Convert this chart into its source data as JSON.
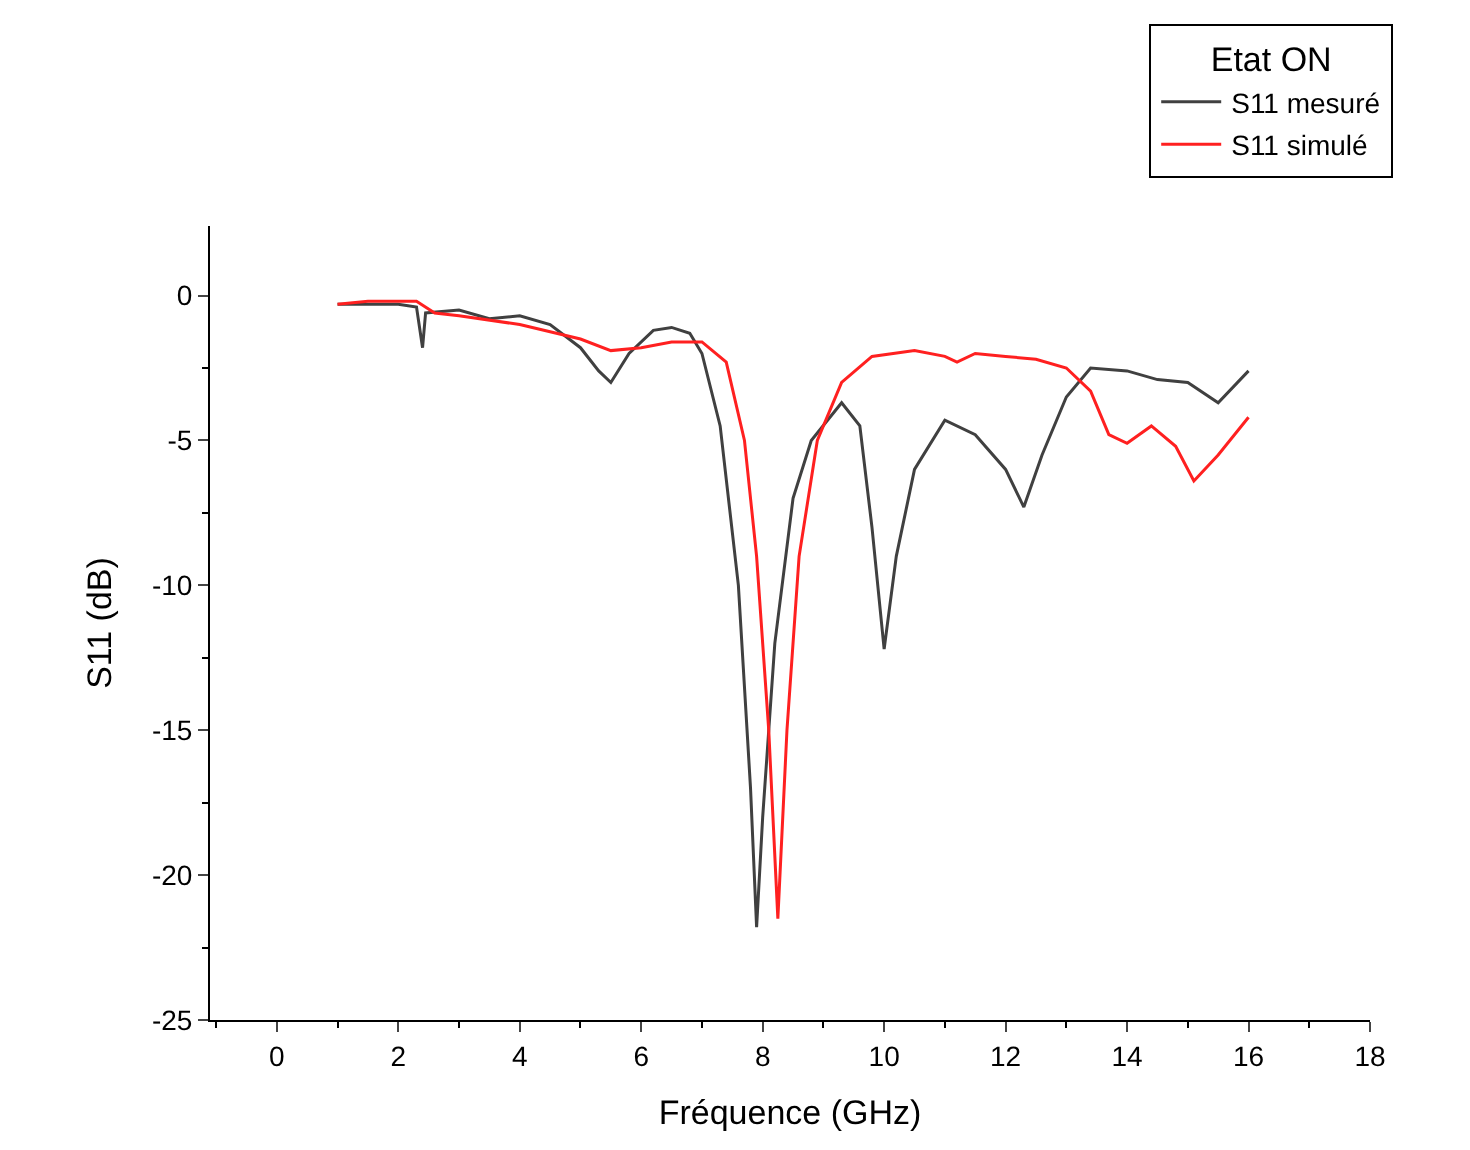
{
  "chart_data": {
    "type": "line",
    "xlabel": "Fréquence (GHz)",
    "ylabel": "S11 (dB)",
    "legend_title": "Etat ON",
    "xlim": [
      -1.1,
      18
    ],
    "xticks": [
      0,
      2,
      4,
      6,
      8,
      10,
      12,
      14,
      16,
      18
    ],
    "ylim": [
      -25,
      2.4
    ],
    "yticks": [
      -25,
      -20,
      -15,
      -10,
      -5,
      0
    ],
    "legend": "top right",
    "series": [
      {
        "name": "S11 mesuré",
        "color": "#404040",
        "x": [
          1.0,
          1.5,
          2.0,
          2.3,
          2.4,
          2.45,
          3.0,
          3.5,
          4.0,
          4.5,
          5.0,
          5.3,
          5.5,
          5.8,
          6.2,
          6.5,
          6.8,
          7.0,
          7.3,
          7.6,
          7.8,
          7.9,
          8.0,
          8.2,
          8.5,
          8.8,
          9.3,
          9.6,
          9.8,
          10.0,
          10.2,
          10.5,
          11.0,
          11.5,
          12.0,
          12.3,
          12.6,
          13.0,
          13.4,
          14.0,
          14.5,
          15.0,
          15.5,
          16.0
        ],
        "values": [
          -0.3,
          -0.3,
          -0.3,
          -0.4,
          -1.8,
          -0.6,
          -0.5,
          -0.8,
          -0.7,
          -1.0,
          -1.8,
          -2.6,
          -3.0,
          -2.0,
          -1.2,
          -1.1,
          -1.3,
          -2.0,
          -4.5,
          -10,
          -17,
          -21.8,
          -18,
          -12,
          -7,
          -5,
          -3.7,
          -4.5,
          -8,
          -12.2,
          -9,
          -6,
          -4.3,
          -4.8,
          -6,
          -7.3,
          -5.5,
          -3.5,
          -2.5,
          -2.6,
          -2.9,
          -3.0,
          -3.7,
          -2.6
        ]
      },
      {
        "name": "S11 simulé",
        "color": "#ff2020",
        "x": [
          1.0,
          1.5,
          2.3,
          2.6,
          3.0,
          4.0,
          5.0,
          5.5,
          6.0,
          6.5,
          7.0,
          7.4,
          7.7,
          7.9,
          8.1,
          8.25,
          8.4,
          8.6,
          8.9,
          9.3,
          9.8,
          10.5,
          11.0,
          11.2,
          11.5,
          12.0,
          12.5,
          13.0,
          13.4,
          13.7,
          14.0,
          14.4,
          14.8,
          15.1,
          15.5,
          16.0
        ],
        "values": [
          -0.3,
          -0.2,
          -0.2,
          -0.6,
          -0.7,
          -1.0,
          -1.5,
          -1.9,
          -1.8,
          -1.6,
          -1.6,
          -2.3,
          -5,
          -9,
          -15,
          -21.5,
          -15,
          -9,
          -5,
          -3,
          -2.1,
          -1.9,
          -2.1,
          -2.3,
          -2.0,
          -2.1,
          -2.2,
          -2.5,
          -3.3,
          -4.8,
          -5.1,
          -4.5,
          -5.2,
          -6.4,
          -5.5,
          -4.2
        ]
      }
    ]
  }
}
